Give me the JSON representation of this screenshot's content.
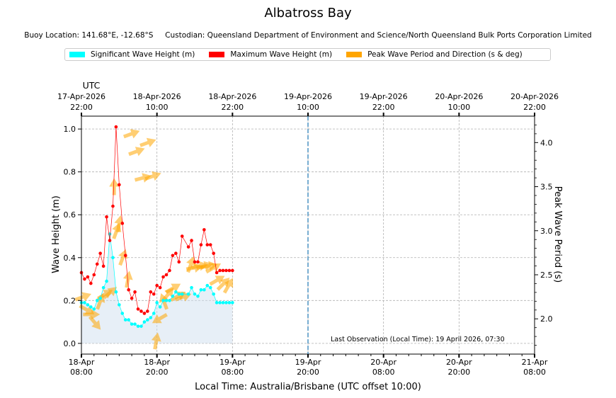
{
  "title": "Albatross Bay",
  "subtitle": {
    "location": "Buoy Location: 141.68°E, -12.68°S",
    "custodian": "Custodian: Queensland Department of Environment and Science/North Queensland Bulk Ports Corporation Limited"
  },
  "legend": [
    {
      "label": "Significant Wave Height (m)",
      "color": "#00ffff"
    },
    {
      "label": "Maximum Wave Height (m)",
      "color": "#ff0000"
    },
    {
      "label": "Peak Wave Period and Direction (s & deg)",
      "color": "#ffa500"
    }
  ],
  "annotation": "Last Observation (Local Time): 19 April 2026, 07:30",
  "chart_data": {
    "type": "line",
    "xlabel": "Local Time: Australia/Brisbane (UTC offset 10:00)",
    "ylabel": "Wave Height (m)",
    "y2label": "Peak Wave Period (s)",
    "top_axis_label": "UTC",
    "xlim_hours": [
      0,
      72
    ],
    "ylim": [
      -0.05,
      1.06
    ],
    "y2lim": [
      1.6,
      4.3
    ],
    "x_ticks": [
      {
        "h": 0,
        "line1": "18-Apr",
        "line2": "08:00"
      },
      {
        "h": 12,
        "line1": "18-Apr",
        "line2": "20:00"
      },
      {
        "h": 24,
        "line1": "19-Apr",
        "line2": "08:00"
      },
      {
        "h": 36,
        "line1": "19-Apr",
        "line2": "20:00"
      },
      {
        "h": 48,
        "line1": "20-Apr",
        "line2": "08:00"
      },
      {
        "h": 60,
        "line1": "20-Apr",
        "line2": "20:00"
      },
      {
        "h": 72,
        "line1": "21-Apr",
        "line2": "08:00"
      }
    ],
    "top_ticks": [
      {
        "h": 0,
        "line1": "17-Apr-2026",
        "line2": "22:00"
      },
      {
        "h": 12,
        "line1": "18-Apr-2026",
        "line2": "10:00"
      },
      {
        "h": 24,
        "line1": "18-Apr-2026",
        "line2": "22:00"
      },
      {
        "h": 36,
        "line1": "19-Apr-2026",
        "line2": "10:00"
      },
      {
        "h": 48,
        "line1": "19-Apr-2026",
        "line2": "22:00"
      },
      {
        "h": 60,
        "line1": "20-Apr-2026",
        "line2": "10:00"
      },
      {
        "h": 72,
        "line1": "20-Apr-2026",
        "line2": "22:00"
      }
    ],
    "y_ticks": [
      "0.0",
      "0.2",
      "0.4",
      "0.6",
      "0.8",
      "1.0"
    ],
    "y2_ticks": [
      "2.0",
      "2.5",
      "3.0",
      "3.5",
      "4.0"
    ],
    "now_marker_h": 36,
    "series": [
      {
        "name": "Significant Wave Height (m)",
        "x": [
          0,
          0.5,
          1,
          1.5,
          2,
          2.5,
          3,
          3.5,
          4,
          4.5,
          5,
          5.5,
          6,
          6.5,
          7,
          7.5,
          8,
          8.5,
          9,
          9.5,
          10,
          10.5,
          11,
          11.5,
          12,
          12.5,
          13,
          13.5,
          14,
          14.5,
          15,
          15.5,
          16,
          17,
          17.5,
          18,
          18.5,
          19,
          19.5,
          20,
          20.5,
          21,
          21.5,
          22,
          22.5,
          23,
          23.5,
          24
        ],
        "values": [
          0.19,
          0.19,
          0.18,
          0.17,
          0.16,
          0.2,
          0.21,
          0.26,
          0.29,
          0.51,
          0.4,
          0.24,
          0.18,
          0.14,
          0.11,
          0.11,
          0.09,
          0.09,
          0.08,
          0.08,
          0.1,
          0.11,
          0.12,
          0.14,
          0.19,
          0.17,
          0.2,
          0.2,
          0.2,
          0.22,
          0.24,
          0.23,
          0.23,
          0.23,
          0.26,
          0.23,
          0.22,
          0.25,
          0.25,
          0.27,
          0.26,
          0.23,
          0.19,
          0.19,
          0.19,
          0.19,
          0.19,
          0.19
        ]
      },
      {
        "name": "Maximum Wave Height (m)",
        "x": [
          0,
          0.5,
          1,
          1.5,
          2,
          2.5,
          3,
          3.5,
          4,
          4.5,
          5,
          5.5,
          6,
          6.5,
          7,
          7.5,
          8,
          8.5,
          9,
          9.5,
          10,
          10.5,
          11,
          11.5,
          12,
          12.5,
          13,
          13.5,
          14,
          14.5,
          15,
          15.5,
          16,
          17,
          17.5,
          18,
          18.5,
          19,
          19.5,
          20,
          20.5,
          21,
          21.5,
          22,
          22.5,
          23,
          23.5,
          24
        ],
        "values": [
          0.33,
          0.3,
          0.31,
          0.28,
          0.32,
          0.37,
          0.42,
          0.36,
          0.59,
          0.48,
          0.64,
          1.01,
          0.74,
          0.56,
          0.41,
          0.25,
          0.21,
          0.24,
          0.16,
          0.15,
          0.14,
          0.15,
          0.24,
          0.23,
          0.27,
          0.26,
          0.31,
          0.32,
          0.34,
          0.41,
          0.42,
          0.38,
          0.5,
          0.45,
          0.48,
          0.38,
          0.38,
          0.46,
          0.53,
          0.46,
          0.46,
          0.42,
          0.33,
          0.34,
          0.34,
          0.34,
          0.34,
          0.34
        ]
      }
    ],
    "peak_period_direction": [
      {
        "h": 0.3,
        "period": 2.25,
        "dir": 250
      },
      {
        "h": 0.9,
        "period": 2.1,
        "dir": 300
      },
      {
        "h": 1.6,
        "period": 2.05,
        "dir": 270
      },
      {
        "h": 2.2,
        "period": 1.95,
        "dir": 320
      },
      {
        "h": 3.0,
        "period": 2.2,
        "dir": 200
      },
      {
        "h": 3.8,
        "period": 2.28,
        "dir": 240
      },
      {
        "h": 4.6,
        "period": 2.3,
        "dir": 230
      },
      {
        "h": 5.2,
        "period": 3.5,
        "dir": 180
      },
      {
        "h": 5.6,
        "period": 3.0,
        "dir": 200
      },
      {
        "h": 6.0,
        "period": 3.08,
        "dir": 190
      },
      {
        "h": 6.6,
        "period": 2.7,
        "dir": 200
      },
      {
        "h": 7.4,
        "period": 2.45,
        "dir": 190
      },
      {
        "h": 8.0,
        "period": 4.1,
        "dir": 250
      },
      {
        "h": 8.8,
        "period": 3.9,
        "dir": 250
      },
      {
        "h": 9.8,
        "period": 3.6,
        "dir": 255
      },
      {
        "h": 10.6,
        "period": 4.0,
        "dir": 250
      },
      {
        "h": 11.4,
        "period": 3.62,
        "dir": 250
      },
      {
        "h": 11.9,
        "period": 1.75,
        "dir": 190
      },
      {
        "h": 12.4,
        "period": 2.0,
        "dir": 60
      },
      {
        "h": 13.1,
        "period": 2.2,
        "dir": 160
      },
      {
        "h": 13.8,
        "period": 2.28,
        "dir": 220
      },
      {
        "h": 14.6,
        "period": 2.35,
        "dir": 240
      },
      {
        "h": 15.4,
        "period": 2.26,
        "dir": 240
      },
      {
        "h": 16.2,
        "period": 2.25,
        "dir": 250
      },
      {
        "h": 17.4,
        "period": 2.62,
        "dir": 200
      },
      {
        "h": 18.0,
        "period": 2.58,
        "dir": 260
      },
      {
        "h": 18.8,
        "period": 2.6,
        "dir": 260
      },
      {
        "h": 19.6,
        "period": 2.6,
        "dir": 255
      },
      {
        "h": 20.3,
        "period": 2.6,
        "dir": 260
      },
      {
        "h": 21.0,
        "period": 2.58,
        "dir": 240
      },
      {
        "h": 21.6,
        "period": 2.44,
        "dir": 240
      },
      {
        "h": 22.6,
        "period": 2.4,
        "dir": 225
      },
      {
        "h": 23.4,
        "period": 2.38,
        "dir": 210
      }
    ]
  }
}
